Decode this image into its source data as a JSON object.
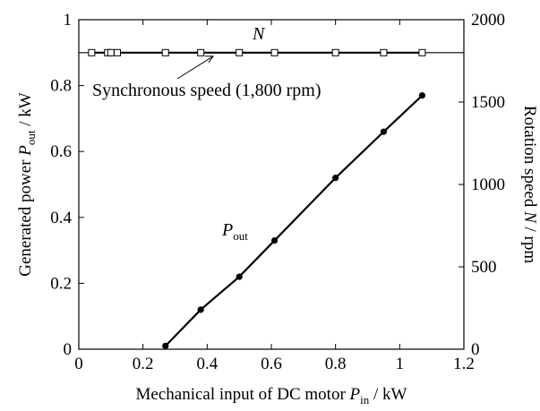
{
  "chart_data": {
    "type": "line",
    "xlabel": "Mechanical input of DC motor",
    "xlabel_symbol": "P",
    "xlabel_sub": "in",
    "xlabel_unit": " / kW",
    "ylabel_left": "Generated power",
    "ylabel_left_symbol": "P",
    "ylabel_left_sub": "out",
    "ylabel_left_unit": " / kW",
    "ylabel_right": "Rotation speed",
    "ylabel_right_symbol": "N",
    "ylabel_right_unit": " / rpm",
    "xlim": [
      0,
      1.2
    ],
    "ylim_left": [
      0,
      1
    ],
    "ylim_right": [
      0,
      2000
    ],
    "x_ticks": [
      "0",
      "0.2",
      "0.4",
      "0.6",
      "0.8",
      "1",
      "1.2"
    ],
    "y_left_ticks": [
      "0",
      "0.2",
      "0.4",
      "0.6",
      "0.8",
      "1"
    ],
    "y_right_ticks": [
      "0",
      "500",
      "1000",
      "1500",
      "2000"
    ],
    "grid": false,
    "legend": "none",
    "series": [
      {
        "name": "P",
        "name_sub": "out",
        "axis": "left",
        "marker": "filled-circle",
        "x": [
          0.27,
          0.38,
          0.5,
          0.61,
          0.8,
          0.95,
          1.07
        ],
        "y": [
          0.01,
          0.12,
          0.22,
          0.33,
          0.52,
          0.66,
          0.77
        ]
      },
      {
        "name": "N",
        "axis": "right",
        "marker": "open-square",
        "x": [
          0.04,
          0.09,
          0.1,
          0.12,
          0.27,
          0.38,
          0.5,
          0.61,
          0.8,
          0.95,
          1.07
        ],
        "y": [
          1800,
          1800,
          1800,
          1800,
          1800,
          1800,
          1800,
          1800,
          1800,
          1800,
          1800
        ]
      }
    ],
    "annotation": {
      "text": "Synchronous speed (1,800 rpm)",
      "value": 1800
    }
  }
}
